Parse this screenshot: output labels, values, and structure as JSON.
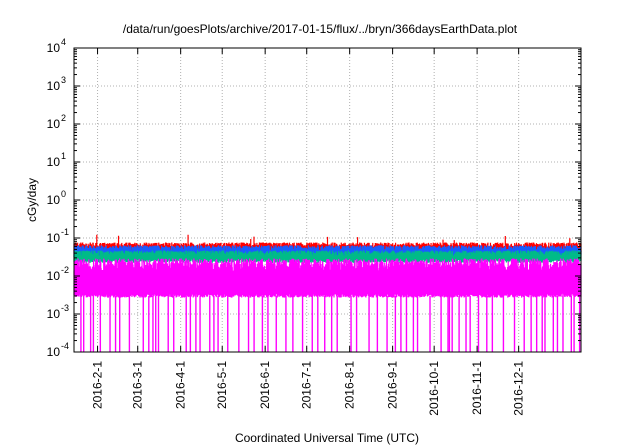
{
  "chart_data": {
    "type": "line",
    "title": "/data/run/goesPlots/archive/2017-01-15/flux/../bryn/366daysEarthData.plot",
    "xlabel": "Coordinated Universal Time (UTC)",
    "ylabel": "cGy/day",
    "yscale": "log",
    "ylim": [
      0.0001,
      10000
    ],
    "xlim": [
      "2016-01-15",
      "2017-01-15"
    ],
    "grid": true,
    "y_ticks": [
      {
        "value": 0.0001,
        "base": "10",
        "exp": "-4"
      },
      {
        "value": 0.001,
        "base": "10",
        "exp": "-3"
      },
      {
        "value": 0.01,
        "base": "10",
        "exp": "-2"
      },
      {
        "value": 0.1,
        "base": "10",
        "exp": "-1"
      },
      {
        "value": 1,
        "base": "10",
        "exp": "0"
      },
      {
        "value": 10,
        "base": "10",
        "exp": "1"
      },
      {
        "value": 100,
        "base": "10",
        "exp": "2"
      },
      {
        "value": 1000,
        "base": "10",
        "exp": "3"
      },
      {
        "value": 10000,
        "base": "10",
        "exp": "4"
      }
    ],
    "x_ticks": [
      {
        "date": "2016-02-01",
        "label": "2016-2-1"
      },
      {
        "date": "2016-03-01",
        "label": "2016-3-1"
      },
      {
        "date": "2016-04-01",
        "label": "2016-4-1"
      },
      {
        "date": "2016-05-01",
        "label": "2016-5-1"
      },
      {
        "date": "2016-06-01",
        "label": "2016-6-1"
      },
      {
        "date": "2016-07-01",
        "label": "2016-7-1"
      },
      {
        "date": "2016-08-01",
        "label": "2016-8-1"
      },
      {
        "date": "2016-09-01",
        "label": "2016-9-1"
      },
      {
        "date": "2016-10-01",
        "label": "2016-10-1"
      },
      {
        "date": "2016-11-01",
        "label": "2016-11-1"
      },
      {
        "date": "2016-12-01",
        "label": "2016-12-1"
      }
    ],
    "series": [
      {
        "color": "#ff0000",
        "typical_value": 0.065
      },
      {
        "color": "#1a5cff",
        "typical_value": 0.055
      },
      {
        "color": "#00bb88",
        "typical_value": 0.04
      },
      {
        "color": "#ff00ff",
        "typical_value": 0.02,
        "floor": 0.003,
        "dropouts_to": 0.0001
      }
    ],
    "dropout_dates": [
      "2016-01-20",
      "2016-01-22",
      "2016-01-27",
      "2016-01-29",
      "2016-02-03",
      "2016-02-10",
      "2016-02-14",
      "2016-02-17",
      "2016-02-24",
      "2016-03-05",
      "2016-03-09",
      "2016-03-12",
      "2016-03-14",
      "2016-03-16",
      "2016-03-23",
      "2016-03-27",
      "2016-04-05",
      "2016-04-08",
      "2016-04-12",
      "2016-04-15",
      "2016-04-22",
      "2016-04-25",
      "2016-04-28",
      "2016-05-05",
      "2016-05-13",
      "2016-05-20",
      "2016-05-24",
      "2016-05-30",
      "2016-06-03",
      "2016-06-09",
      "2016-06-16",
      "2016-06-21",
      "2016-06-28",
      "2016-07-05",
      "2016-07-09",
      "2016-07-14",
      "2016-07-19",
      "2016-07-23",
      "2016-08-02",
      "2016-08-06",
      "2016-08-15",
      "2016-08-21",
      "2016-08-28",
      "2016-09-03",
      "2016-09-07",
      "2016-09-11",
      "2016-09-16",
      "2016-09-19",
      "2016-09-28",
      "2016-10-06",
      "2016-10-11",
      "2016-10-12",
      "2016-10-14",
      "2016-10-19",
      "2016-10-24",
      "2016-10-27",
      "2016-11-02",
      "2016-11-08",
      "2016-11-12",
      "2016-11-20",
      "2016-11-28",
      "2016-12-05",
      "2016-12-10",
      "2016-12-14",
      "2016-12-18",
      "2016-12-20",
      "2016-12-26",
      "2016-12-29",
      "2017-01-02",
      "2017-01-08",
      "2017-01-10",
      "2017-01-14"
    ]
  }
}
